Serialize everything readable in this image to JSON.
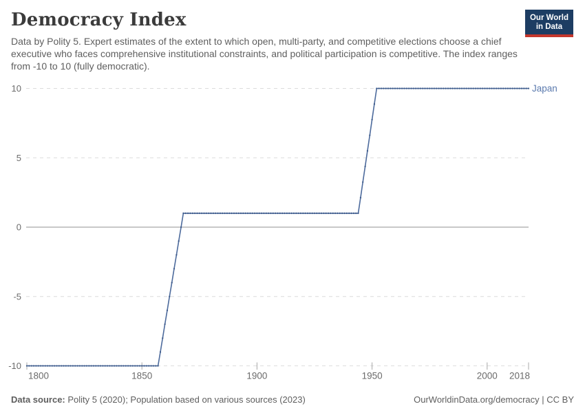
{
  "header": {
    "title": "Democracy Index",
    "subtitle": "Data by Polity 5. Expert estimates of the extent to which open, multi-party, and competitive elections choose a chief executive who faces comprehensive institutional constraints, and political participation is competitive. The index ranges from -10 to 10 (fully democratic)."
  },
  "logo": {
    "line1": "Our World",
    "line2": "in Data",
    "background_color": "#1d3d63",
    "accent_color": "#c5372d"
  },
  "chart_data": {
    "type": "line",
    "title": "Democracy Index",
    "xlabel": "",
    "ylabel": "",
    "x_range": [
      1800,
      2018
    ],
    "y_range": [
      -10,
      10
    ],
    "x_ticks": [
      1800,
      1850,
      1900,
      1950,
      2000,
      2018
    ],
    "y_ticks": [
      10,
      5,
      0,
      -5,
      -10
    ],
    "grid": "dashed horizontal gridlines, solid line at zero",
    "legend_position": "series label at right end of line",
    "series": [
      {
        "name": "Japan",
        "color": "#4c6a9c",
        "marker_color": "#3d5a8a",
        "label_color": "#5b7aae",
        "markers": "dot at every integer year",
        "interpolation": "linear between breakpoints, sampled at every integer year",
        "breakpoints": [
          [
            1800,
            -10
          ],
          [
            1857,
            -10
          ],
          [
            1868,
            1
          ],
          [
            1944,
            1
          ],
          [
            1952,
            10
          ],
          [
            2018,
            10
          ]
        ]
      }
    ],
    "style_colors": {
      "gridline": "#dcdcdc",
      "zero_line": "#a6a6a6",
      "tick_mark": "#a8a8a8",
      "tick_label": "#6b6b6b"
    }
  },
  "footer": {
    "source_label": "Data source:",
    "source_text": "Polity 5 (2020); Population based on various sources (2023)",
    "credit": "OurWorldinData.org/democracy | CC BY"
  }
}
